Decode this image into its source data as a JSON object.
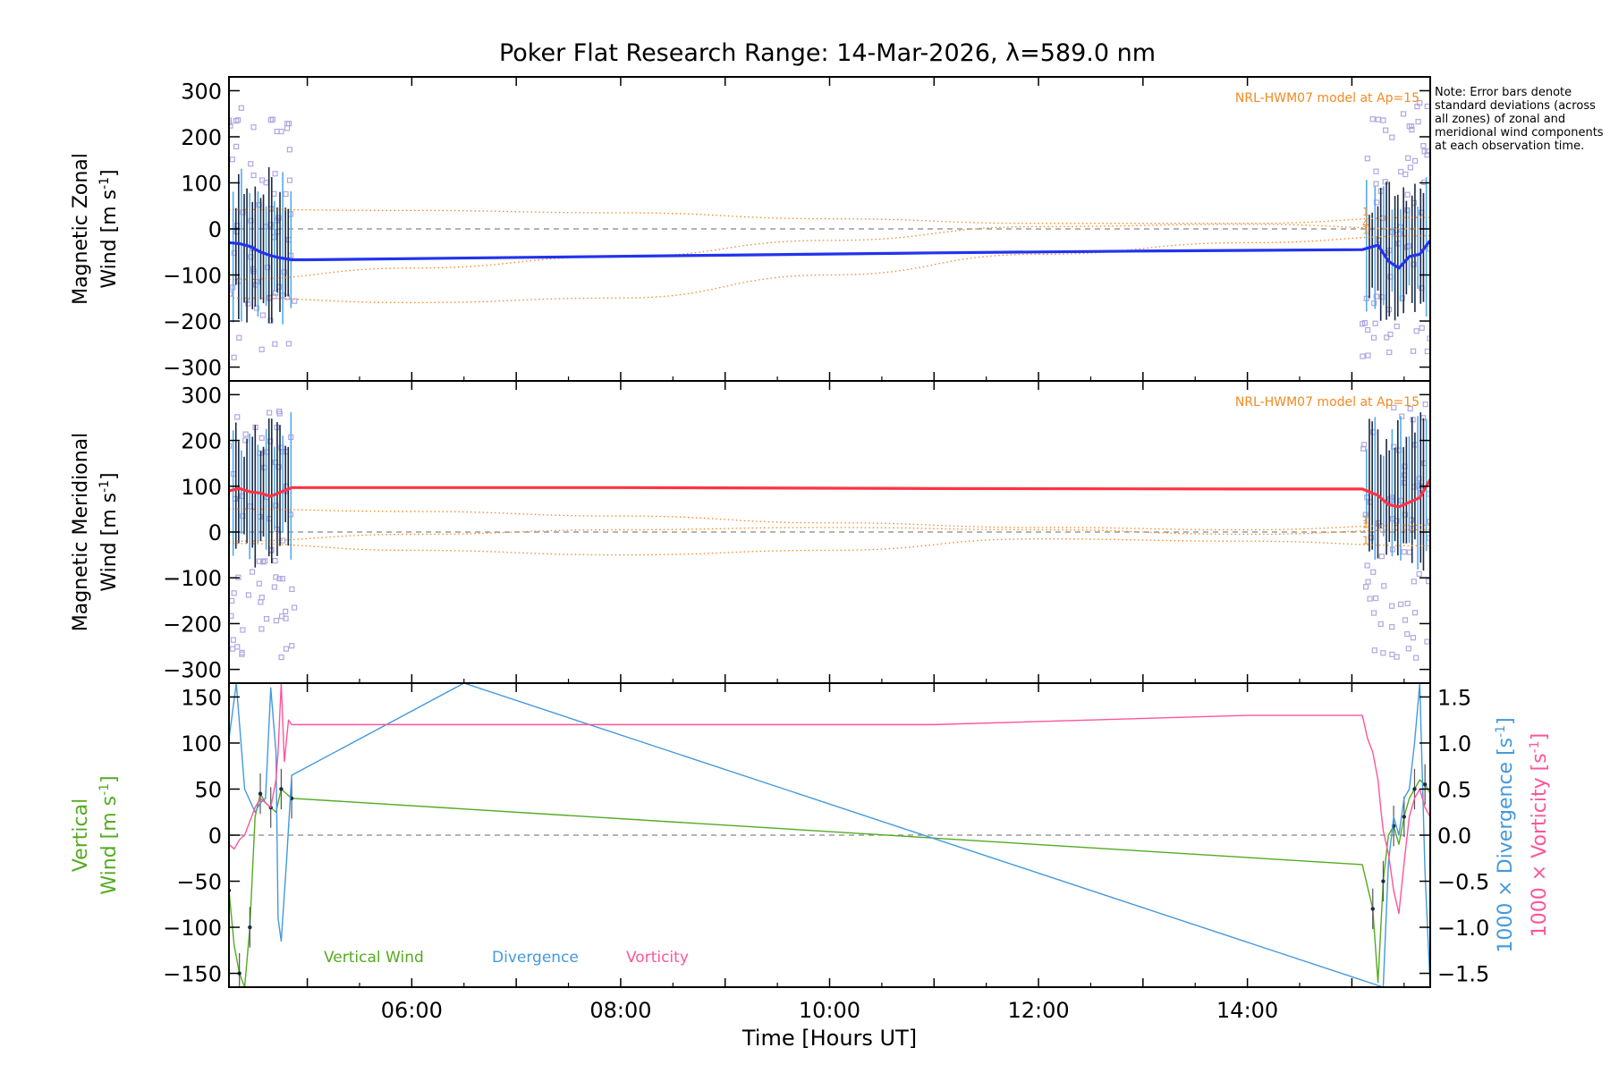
{
  "title": "Poker Flat Research Range: 14-Mar-2026, λ=589.0 nm",
  "note": "Note: Error bars denote standard deviations (across all zones) of zonal and meridional wind components at each observation time.",
  "colors": {
    "zonal": "#2233ee",
    "zonal_light": "#55aaee",
    "meridional": "#ff3344",
    "meridional_light": "#ff77aa",
    "model": "#f08a24",
    "vertical": "#55aa22",
    "divergence": "#4499dd",
    "vorticity": "#ff5599",
    "scatter": "#b0a8e0",
    "errorbar": "#1a2a44",
    "zero": "#888888"
  },
  "chart_data": [
    {
      "name": "zonal",
      "type": "line",
      "ylabel_line1": "Magnetic Zonal",
      "ylabel_line2": "Wind [m s",
      "ylabel_sup": "-1",
      "ylabel_close": "]",
      "ylim": [
        -330,
        330
      ],
      "yticks": [
        -300,
        -200,
        -100,
        0,
        100,
        200,
        300
      ],
      "xlim": [
        4.25,
        15.75
      ],
      "model_label": "NRL-HWM07 model at Ap=15",
      "model_tags": [
        "1",
        "4",
        "1"
      ],
      "series": [
        {
          "name": "Magnetic Zonal Wind",
          "x": [
            4.25,
            4.35,
            4.45,
            4.55,
            4.65,
            4.72,
            4.8,
            4.85,
            5.0,
            7.0,
            9.0,
            11.0,
            13.0,
            15.1,
            15.25,
            15.35,
            15.45,
            15.55,
            15.65,
            15.75
          ],
          "y": [
            -30,
            -32,
            -38,
            -50,
            -58,
            -62,
            -65,
            -67,
            -67,
            -62,
            -57,
            -52,
            -48,
            -45,
            -35,
            -70,
            -85,
            -60,
            -55,
            -25
          ]
        }
      ],
      "model_curves": [
        {
          "x": [
            4.25,
            6.0,
            8.0,
            10.0,
            12.0,
            14.0,
            15.75
          ],
          "y": [
            42,
            40,
            35,
            22,
            12,
            12,
            25
          ]
        },
        {
          "x": [
            4.25,
            6.0,
            8.0,
            10.0,
            12.0,
            14.0,
            15.75
          ],
          "y": [
            -110,
            -85,
            -60,
            -25,
            5,
            10,
            0
          ]
        },
        {
          "x": [
            4.25,
            6.0,
            8.0,
            10.0,
            12.0,
            14.0,
            15.75
          ],
          "y": [
            -150,
            -160,
            -150,
            -100,
            -55,
            -30,
            -15
          ]
        }
      ]
    },
    {
      "name": "meridional",
      "type": "line",
      "ylabel_line1": "Magnetic Meridional",
      "ylabel_line2": "Wind [m s",
      "ylabel_sup": "-1",
      "ylabel_close": "]",
      "ylim": [
        -330,
        330
      ],
      "yticks": [
        -300,
        -200,
        -100,
        0,
        100,
        200,
        300
      ],
      "xlim": [
        4.25,
        15.75
      ],
      "model_label": "NRL-HWM07 model at Ap=15",
      "model_tags": [
        "1",
        "1",
        "1"
      ],
      "series": [
        {
          "name": "Magnetic Meridional Wind",
          "x": [
            4.25,
            4.35,
            4.45,
            4.55,
            4.65,
            4.72,
            4.8,
            4.85,
            5.0,
            8.0,
            11.0,
            14.0,
            15.1,
            15.25,
            15.35,
            15.45,
            15.55,
            15.65,
            15.75
          ],
          "y": [
            90,
            95,
            88,
            85,
            78,
            85,
            92,
            97,
            97,
            97,
            95,
            94,
            94,
            80,
            60,
            55,
            65,
            75,
            115
          ]
        }
      ],
      "model_curves": [
        {
          "x": [
            4.25,
            6.0,
            8.0,
            10.0,
            12.0,
            14.0,
            15.75
          ],
          "y": [
            50,
            45,
            35,
            20,
            10,
            5,
            15
          ]
        },
        {
          "x": [
            4.25,
            6.0,
            8.0,
            10.0,
            12.0,
            14.0,
            15.75
          ],
          "y": [
            -20,
            -5,
            5,
            10,
            5,
            -5,
            5
          ]
        },
        {
          "x": [
            4.25,
            6.0,
            8.0,
            10.0,
            12.0,
            14.0,
            15.75
          ],
          "y": [
            -25,
            -40,
            -50,
            -40,
            -15,
            -20,
            -30
          ]
        }
      ]
    },
    {
      "name": "vertical",
      "type": "line",
      "ylabel_line1": "Vertical",
      "ylabel_line2": "Wind [m s",
      "ylabel_sup": "-1",
      "ylabel_close": "]",
      "xlabel": "Time [Hours UT]",
      "ylim": [
        -165,
        165
      ],
      "yticks": [
        -150,
        -100,
        -50,
        0,
        50,
        100,
        150
      ],
      "xlim": [
        4.25,
        15.75
      ],
      "xticks": [
        6,
        8,
        10,
        12,
        14
      ],
      "xtick_labels": [
        "06:00",
        "08:00",
        "10:00",
        "12:00",
        "14:00"
      ],
      "y2lim": [
        -1.65,
        1.65
      ],
      "y2ticks": [
        -1.5,
        -1.0,
        -0.5,
        0.0,
        0.5,
        1.0,
        1.5
      ],
      "y2tick_labels": [
        "−1.5",
        "−1.0",
        "−0.5",
        "0.0",
        "0.5",
        "1.0",
        "1.5"
      ],
      "y2label_div": "1000 × Divergence [s",
      "y2label_vort": "1000 × Vorticity [s",
      "y2label_sup": "-1",
      "y2label_close": "]",
      "legend": [
        "Vertical Wind",
        "Divergence",
        "Vorticity"
      ],
      "series": [
        {
          "name": "Vertical Wind",
          "axis": "left",
          "x": [
            4.25,
            4.3,
            4.35,
            4.4,
            4.45,
            4.5,
            4.55,
            4.6,
            4.65,
            4.7,
            4.75,
            4.8,
            4.85,
            15.1,
            15.2,
            15.25,
            15.3,
            15.35,
            15.4,
            15.45,
            15.5,
            15.55,
            15.6,
            15.65,
            15.7,
            15.75
          ],
          "y": [
            -60,
            -120,
            -150,
            -165,
            -100,
            20,
            45,
            35,
            30,
            25,
            50,
            45,
            40,
            -32,
            -80,
            -160,
            -50,
            0,
            10,
            -10,
            20,
            40,
            50,
            60,
            55,
            45
          ]
        },
        {
          "name": "Divergence",
          "axis": "right",
          "x": [
            4.25,
            4.28,
            4.32,
            4.4,
            4.5,
            4.55,
            4.6,
            4.65,
            4.7,
            4.72,
            4.75,
            4.8,
            4.85,
            6.5,
            15.3,
            15.35,
            15.4,
            15.45,
            15.5,
            15.55,
            15.6,
            15.65,
            15.7,
            15.75
          ],
          "y": [
            1.05,
            1.3,
            1.65,
            0.5,
            0.25,
            0.35,
            0.4,
            1.6,
            0.9,
            -0.9,
            -1.15,
            -0.3,
            0.65,
            1.65,
            -1.65,
            -0.3,
            0.2,
            0.0,
            0.4,
            0.5,
            1.0,
            1.65,
            -0.4,
            -1.65
          ]
        },
        {
          "name": "Vorticity",
          "axis": "right",
          "x": [
            4.25,
            4.3,
            4.35,
            4.4,
            4.45,
            4.5,
            4.55,
            4.6,
            4.65,
            4.7,
            4.72,
            4.75,
            4.78,
            4.82,
            4.85,
            8.0,
            11.0,
            14.0,
            15.1,
            15.15,
            15.2,
            15.25,
            15.28,
            15.3,
            15.35,
            15.4,
            15.45,
            15.5,
            15.55,
            15.6,
            15.65,
            15.7,
            15.75
          ],
          "y": [
            -0.1,
            -0.15,
            -0.05,
            0.0,
            0.15,
            0.3,
            0.4,
            0.35,
            0.3,
            0.6,
            0.9,
            1.65,
            0.8,
            1.25,
            1.2,
            1.2,
            1.2,
            1.3,
            1.3,
            1.05,
            0.9,
            0.6,
            0.25,
            0.05,
            -0.2,
            -0.6,
            -0.85,
            -0.3,
            0.2,
            0.4,
            0.5,
            0.3,
            0.2
          ]
        }
      ]
    }
  ]
}
